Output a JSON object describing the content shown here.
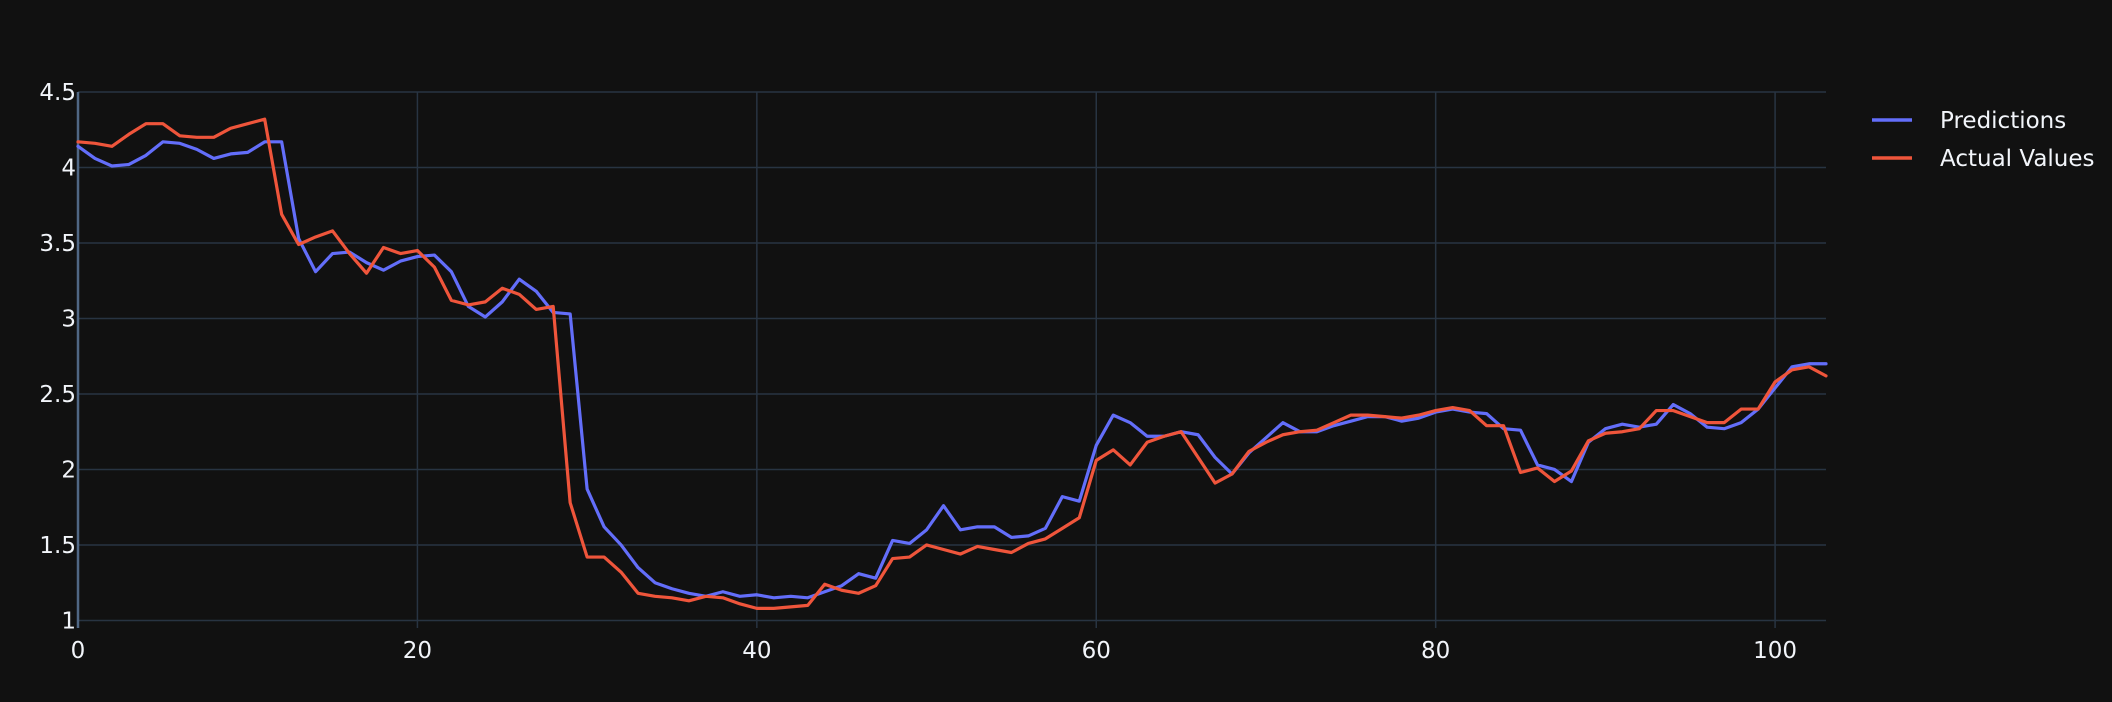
{
  "colors": {
    "background": "#111111",
    "grid": "#283442",
    "text": "#f2f5fa"
  },
  "chart_data": {
    "type": "line",
    "title": "",
    "xlabel": "",
    "ylabel": "",
    "xlim": [
      0,
      103
    ],
    "ylim": [
      0.95,
      4.5
    ],
    "xticks": [
      0,
      20,
      40,
      60,
      80,
      100
    ],
    "yticks": [
      1,
      1.5,
      2,
      2.5,
      3,
      3.5,
      4,
      4.5
    ],
    "grid": true,
    "legend_position": "top-right",
    "series": [
      {
        "name": "Predictions",
        "color": "#636efa",
        "values": [
          4.14,
          4.06,
          4.01,
          4.02,
          4.08,
          4.17,
          4.16,
          4.12,
          4.06,
          4.09,
          4.1,
          4.17,
          4.17,
          3.53,
          3.31,
          3.43,
          3.44,
          3.37,
          3.32,
          3.38,
          3.41,
          3.42,
          3.31,
          3.08,
          3.01,
          3.11,
          3.26,
          3.18,
          3.04,
          3.03,
          1.87,
          1.62,
          1.5,
          1.35,
          1.25,
          1.21,
          1.18,
          1.16,
          1.19,
          1.16,
          1.17,
          1.15,
          1.16,
          1.15,
          1.19,
          1.23,
          1.31,
          1.28,
          1.53,
          1.51,
          1.6,
          1.76,
          1.6,
          1.62,
          1.62,
          1.55,
          1.56,
          1.61,
          1.82,
          1.79,
          2.16,
          2.36,
          2.31,
          2.22,
          2.22,
          2.25,
          2.23,
          2.08,
          1.97,
          2.11,
          2.21,
          2.31,
          2.25,
          2.25,
          2.29,
          2.32,
          2.35,
          2.35,
          2.32,
          2.34,
          2.38,
          2.4,
          2.38,
          2.37,
          2.27,
          2.26,
          2.03,
          2.0,
          1.92,
          2.18,
          2.27,
          2.3,
          2.28,
          2.3,
          2.43,
          2.37,
          2.28,
          2.27,
          2.31,
          2.4,
          2.54,
          2.68,
          2.7,
          2.7
        ]
      },
      {
        "name": "Actual Values",
        "color": "#ef553b",
        "values": [
          4.17,
          4.16,
          4.14,
          4.22,
          4.29,
          4.29,
          4.21,
          4.2,
          4.2,
          4.26,
          4.29,
          4.32,
          3.69,
          3.49,
          3.54,
          3.58,
          3.43,
          3.3,
          3.47,
          3.43,
          3.45,
          3.34,
          3.12,
          3.09,
          3.11,
          3.2,
          3.16,
          3.06,
          3.08,
          1.78,
          1.42,
          1.42,
          1.32,
          1.18,
          1.16,
          1.15,
          1.13,
          1.16,
          1.15,
          1.11,
          1.08,
          1.08,
          1.09,
          1.1,
          1.24,
          1.2,
          1.18,
          1.23,
          1.41,
          1.42,
          1.5,
          1.47,
          1.44,
          1.49,
          1.47,
          1.45,
          1.51,
          1.54,
          1.61,
          1.68,
          2.06,
          2.13,
          2.03,
          2.18,
          2.22,
          2.25,
          2.08,
          1.91,
          1.97,
          2.12,
          2.18,
          2.23,
          2.25,
          2.26,
          2.31,
          2.36,
          2.36,
          2.35,
          2.34,
          2.36,
          2.39,
          2.41,
          2.39,
          2.29,
          2.29,
          1.98,
          2.01,
          1.92,
          1.99,
          2.19,
          2.24,
          2.25,
          2.27,
          2.39,
          2.39,
          2.35,
          2.31,
          2.31,
          2.4,
          2.4,
          2.58,
          2.66,
          2.68,
          2.62
        ]
      }
    ]
  }
}
